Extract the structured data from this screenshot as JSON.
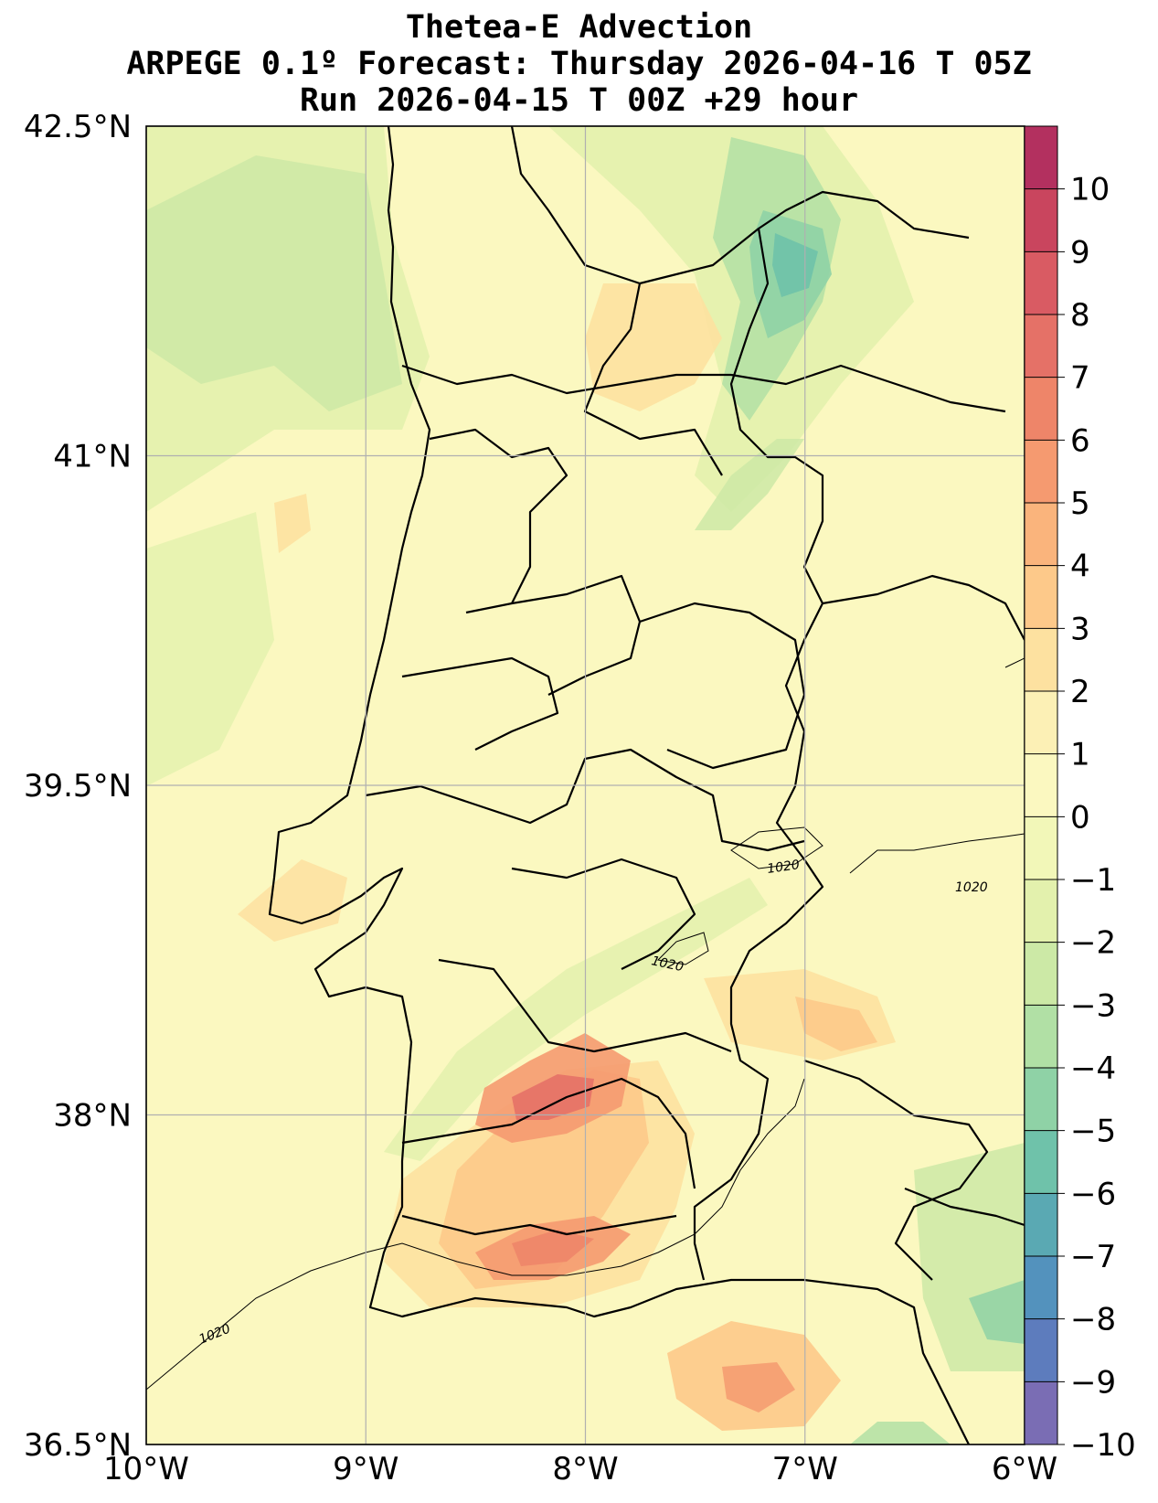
{
  "title": {
    "line1": "Thetea-E Advection",
    "line2": "ARPEGE 0.1º Forecast: Thursday 2026-04-16 T 05Z",
    "line3": "Run 2026-04-15 T 00Z +29 hour"
  },
  "map": {
    "lon_range": [
      -10,
      -6
    ],
    "lat_range": [
      36.5,
      42.5
    ],
    "lon_ticks": [
      {
        "value": -10,
        "label": "10°W"
      },
      {
        "value": -9,
        "label": "9°W"
      },
      {
        "value": -8,
        "label": "8°W"
      },
      {
        "value": -7,
        "label": "7°W"
      },
      {
        "value": -6,
        "label": "6°W"
      }
    ],
    "lat_ticks": [
      {
        "value": 42.5,
        "label": "42.5°N"
      },
      {
        "value": 41,
        "label": "41°N"
      },
      {
        "value": 39.5,
        "label": "39.5°N"
      },
      {
        "value": 38,
        "label": "38°N"
      },
      {
        "value": 36.5,
        "label": "36.5°N"
      }
    ],
    "grid": true,
    "isobar_label": "1020",
    "colors": {
      "background": "#fbf8c0",
      "frame": "#000000",
      "grid": "#b0b0b0",
      "borders": "#000000"
    }
  },
  "colorbar": {
    "levels": [
      10,
      9,
      8,
      7,
      6,
      5,
      4,
      3,
      2,
      1,
      0,
      -1,
      -2,
      -3,
      -4,
      -5,
      -6,
      -7,
      -8,
      -9,
      -10
    ],
    "labels": [
      "10",
      "9",
      "8",
      "7",
      "6",
      "5",
      "4",
      "3",
      "2",
      "1",
      "0",
      "−1",
      "−2",
      "−3",
      "−4",
      "−5",
      "−6",
      "−7",
      "−8",
      "−9",
      "−10"
    ],
    "band_colors": [
      "#b3305f",
      "#c9455e",
      "#d95b63",
      "#e57167",
      "#ee8569",
      "#f59a70",
      "#fab47c",
      "#fdc98a",
      "#fde1a0",
      "#fcf0b5",
      "#fbf8c0",
      "#f2f7b8",
      "#e3f1ad",
      "#cce9a6",
      "#b1e0a5",
      "#8fd2a6",
      "#6fc2aa",
      "#5aa9b3",
      "#5392bd",
      "#5d7cbd",
      "#7a6db4"
    ]
  }
}
